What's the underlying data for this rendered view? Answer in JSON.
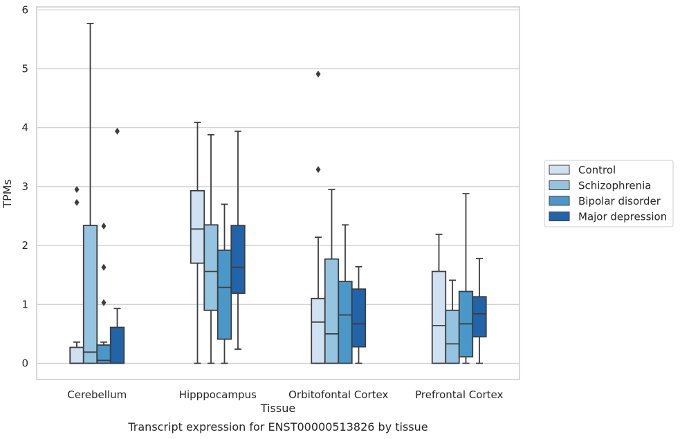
{
  "chart_data": {
    "type": "boxplot",
    "caption": "Transcript expression for ENST00000513826 by tissue",
    "xlabel": "Tissue",
    "ylabel": "TPMs",
    "ylim": [
      -0.27,
      6.1
    ],
    "yticks": [
      0,
      1,
      2,
      3,
      4,
      5,
      6
    ],
    "grid": "horizontal",
    "legend_placement": "right",
    "categories": [
      "Cerebellum",
      "Hipppocampus",
      "Orbitofontal Cortex",
      "Prefrontal Cortex"
    ],
    "series": [
      {
        "name": "Control",
        "color": "#d0e1f2",
        "boxes": [
          {
            "whislo": 0,
            "q1": 0,
            "med": 0,
            "q3": 0.27,
            "whishi": 0.36,
            "fliers": [
              2.73,
              2.95
            ]
          },
          {
            "whislo": 0,
            "q1": 1.7,
            "med": 2.28,
            "q3": 2.93,
            "whishi": 4.09,
            "fliers": []
          },
          {
            "whislo": 0,
            "q1": 0,
            "med": 0.7,
            "q3": 1.1,
            "whishi": 2.14,
            "fliers": [
              3.29,
              4.91
            ]
          },
          {
            "whislo": 0,
            "q1": 0,
            "med": 0.64,
            "q3": 1.56,
            "whishi": 2.19,
            "fliers": []
          }
        ]
      },
      {
        "name": "Schizophrenia",
        "color": "#94c4df",
        "boxes": [
          {
            "whislo": 0,
            "q1": 0,
            "med": 0.19,
            "q3": 2.34,
            "whishi": 5.77,
            "fliers": []
          },
          {
            "whislo": 0,
            "q1": 0.9,
            "med": 1.56,
            "q3": 2.35,
            "whishi": 3.88,
            "fliers": []
          },
          {
            "whislo": 0,
            "q1": 0,
            "med": 0.5,
            "q3": 1.77,
            "whishi": 2.95,
            "fliers": []
          },
          {
            "whislo": 0,
            "q1": 0,
            "med": 0.33,
            "q3": 0.9,
            "whishi": 1.41,
            "fliers": []
          }
        ]
      },
      {
        "name": "Bipolar disorder",
        "color": "#4a98c9",
        "boxes": [
          {
            "whislo": 0,
            "q1": 0,
            "med": 0.05,
            "q3": 0.31,
            "whishi": 0.36,
            "fliers": [
              1.03,
              1.63,
              2.33
            ]
          },
          {
            "whislo": 0,
            "q1": 0.41,
            "med": 1.29,
            "q3": 1.92,
            "whishi": 2.7,
            "fliers": []
          },
          {
            "whislo": 0,
            "q1": 0,
            "med": 0.82,
            "q3": 1.39,
            "whishi": 2.35,
            "fliers": []
          },
          {
            "whislo": 0,
            "q1": 0.11,
            "med": 0.67,
            "q3": 1.22,
            "whishi": 2.88,
            "fliers": []
          }
        ]
      },
      {
        "name": "Major depression",
        "color": "#2264aa",
        "boxes": [
          {
            "whislo": 0,
            "q1": 0,
            "med": 0,
            "q3": 0.61,
            "whishi": 0.93,
            "fliers": [
              3.94
            ]
          },
          {
            "whislo": 0.24,
            "q1": 1.19,
            "med": 1.63,
            "q3": 2.34,
            "whishi": 3.94,
            "fliers": []
          },
          {
            "whislo": 0,
            "q1": 0.28,
            "med": 0.67,
            "q3": 1.26,
            "whishi": 1.64,
            "fliers": []
          },
          {
            "whislo": 0,
            "q1": 0.45,
            "med": 0.84,
            "q3": 1.13,
            "whishi": 1.78,
            "fliers": []
          }
        ]
      }
    ]
  }
}
